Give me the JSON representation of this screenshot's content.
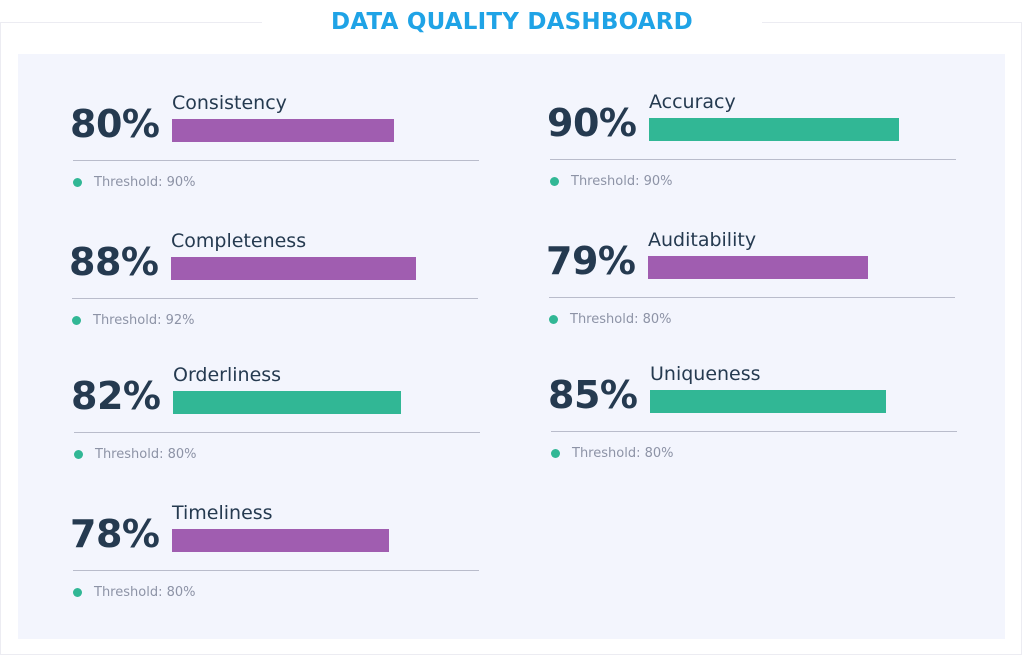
{
  "title": "DATA QUALITY DASHBOARD",
  "colors": {
    "title": "#1fa3e6",
    "panel_background": "#f3f5fd",
    "purple_bar": "#a05db0",
    "green_bar": "#31b795",
    "threshold_dot": "#31b795",
    "text_dark": "#253a50",
    "text_muted": "#8d93a6"
  },
  "metrics": [
    {
      "name": "Consistency",
      "value_label": "80%",
      "value": 0.8,
      "threshold_label": "Threshold: 90%",
      "bar_color": "#a05db0"
    },
    {
      "name": "Accuracy",
      "value_label": "90%",
      "value": 0.9,
      "threshold_label": "Threshold: 90%",
      "bar_color": "#31b795"
    },
    {
      "name": "Completeness",
      "value_label": "88%",
      "value": 0.88,
      "threshold_label": "Threshold: 92%",
      "bar_color": "#a05db0"
    },
    {
      "name": "Auditability",
      "value_label": "79%",
      "value": 0.79,
      "threshold_label": "Threshold: 80%",
      "bar_color": "#a05db0"
    },
    {
      "name": "Orderliness",
      "value_label": "82%",
      "value": 0.82,
      "threshold_label": "Threshold: 80%",
      "bar_color": "#31b795"
    },
    {
      "name": "Uniqueness",
      "value_label": "85%",
      "value": 0.85,
      "threshold_label": "Threshold: 80%",
      "bar_color": "#31b795"
    },
    {
      "name": "Timeliness",
      "value_label": "78%",
      "value": 0.78,
      "threshold_label": "Threshold: 80%",
      "bar_color": "#a05db0"
    }
  ]
}
